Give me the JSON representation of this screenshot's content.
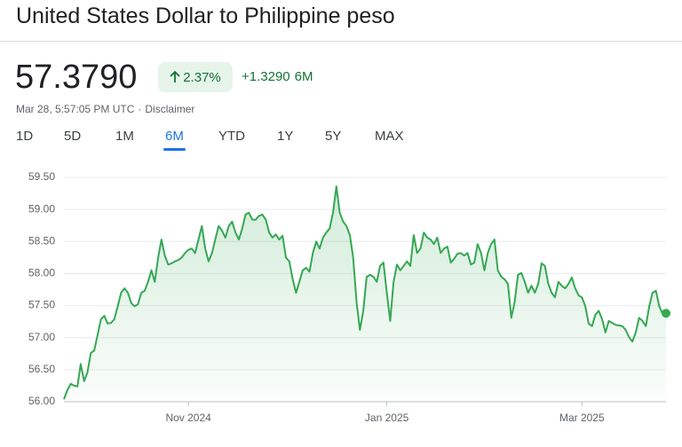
{
  "header": {
    "title": "United States Dollar to Philippine peso",
    "price": "57.3790",
    "change_pct": "2.37%",
    "change_abs": "+1.3290",
    "period": "6M",
    "timestamp": "Mar 28, 5:57:05 PM UTC",
    "separator": "·",
    "disclaimer": "Disclaimer"
  },
  "tabs": [
    "1D",
    "5D",
    "1M",
    "6M",
    "YTD",
    "1Y",
    "5Y",
    "MAX"
  ],
  "selected_tab": 3,
  "chart_data": {
    "type": "area",
    "color": "#34a853",
    "grid": true,
    "xlim": [
      0,
      179
    ],
    "xticks": [
      {
        "value": 37,
        "label": "Nov 2024"
      },
      {
        "value": 96,
        "label": "Jan 2025"
      },
      {
        "value": 154,
        "label": "Mar 2025"
      }
    ],
    "ylim": [
      56,
      59.5
    ],
    "yticks": [
      {
        "value": 56,
        "label": "56.00"
      },
      {
        "value": 56.5,
        "label": "56.50"
      },
      {
        "value": 57,
        "label": "57.00"
      },
      {
        "value": 57.5,
        "label": "57.50"
      },
      {
        "value": 58,
        "label": "58.00"
      },
      {
        "value": 58.5,
        "label": "58.50"
      },
      {
        "value": 59,
        "label": "59.00"
      },
      {
        "value": 59.5,
        "label": "59.50"
      }
    ],
    "values": [
      56.04,
      56.18,
      56.28,
      56.25,
      56.24,
      56.59,
      56.32,
      56.46,
      56.76,
      56.8,
      57.04,
      57.29,
      57.34,
      57.22,
      57.23,
      57.29,
      57.49,
      57.7,
      57.77,
      57.7,
      57.54,
      57.49,
      57.52,
      57.7,
      57.73,
      57.87,
      58.05,
      57.87,
      58.25,
      58.53,
      58.28,
      58.14,
      58.16,
      58.19,
      58.21,
      58.25,
      58.32,
      58.37,
      58.39,
      58.32,
      58.53,
      58.74,
      58.39,
      58.19,
      58.32,
      58.53,
      58.74,
      58.67,
      58.56,
      58.74,
      58.81,
      58.64,
      58.53,
      58.7,
      58.92,
      58.95,
      58.84,
      58.84,
      58.9,
      58.92,
      58.84,
      58.64,
      58.56,
      58.61,
      58.53,
      58.59,
      58.25,
      58.19,
      57.91,
      57.7,
      57.87,
      58.05,
      58.09,
      58.03,
      58.32,
      58.5,
      58.39,
      58.56,
      58.64,
      58.7,
      58.95,
      59.36,
      58.95,
      58.81,
      58.74,
      58.6,
      58.25,
      57.56,
      57.12,
      57.42,
      57.95,
      57.98,
      57.95,
      57.87,
      58.12,
      58.17,
      57.7,
      57.26,
      57.87,
      58.14,
      58.05,
      58.12,
      58.19,
      58.12,
      58.6,
      58.32,
      58.39,
      58.64,
      58.56,
      58.53,
      58.46,
      58.56,
      58.32,
      58.39,
      58.42,
      58.17,
      58.23,
      58.31,
      58.32,
      58.28,
      58.32,
      58.14,
      58.17,
      58.46,
      58.32,
      58.05,
      58.32,
      58.46,
      58.53,
      58.05,
      57.95,
      57.91,
      57.84,
      57.31,
      57.56,
      57.98,
      58.01,
      57.87,
      57.7,
      57.81,
      57.7,
      57.84,
      58.16,
      58.12,
      57.84,
      57.7,
      57.63,
      57.87,
      57.81,
      57.77,
      57.84,
      57.94,
      57.77,
      57.66,
      57.63,
      57.49,
      57.22,
      57.18,
      57.36,
      57.42,
      57.29,
      57.08,
      57.26,
      57.23,
      57.2,
      57.19,
      57.18,
      57.12,
      57.01,
      56.94,
      57.08,
      57.31,
      57.26,
      57.18,
      57.49,
      57.7,
      57.73,
      57.49,
      57.37,
      57.38
    ]
  }
}
